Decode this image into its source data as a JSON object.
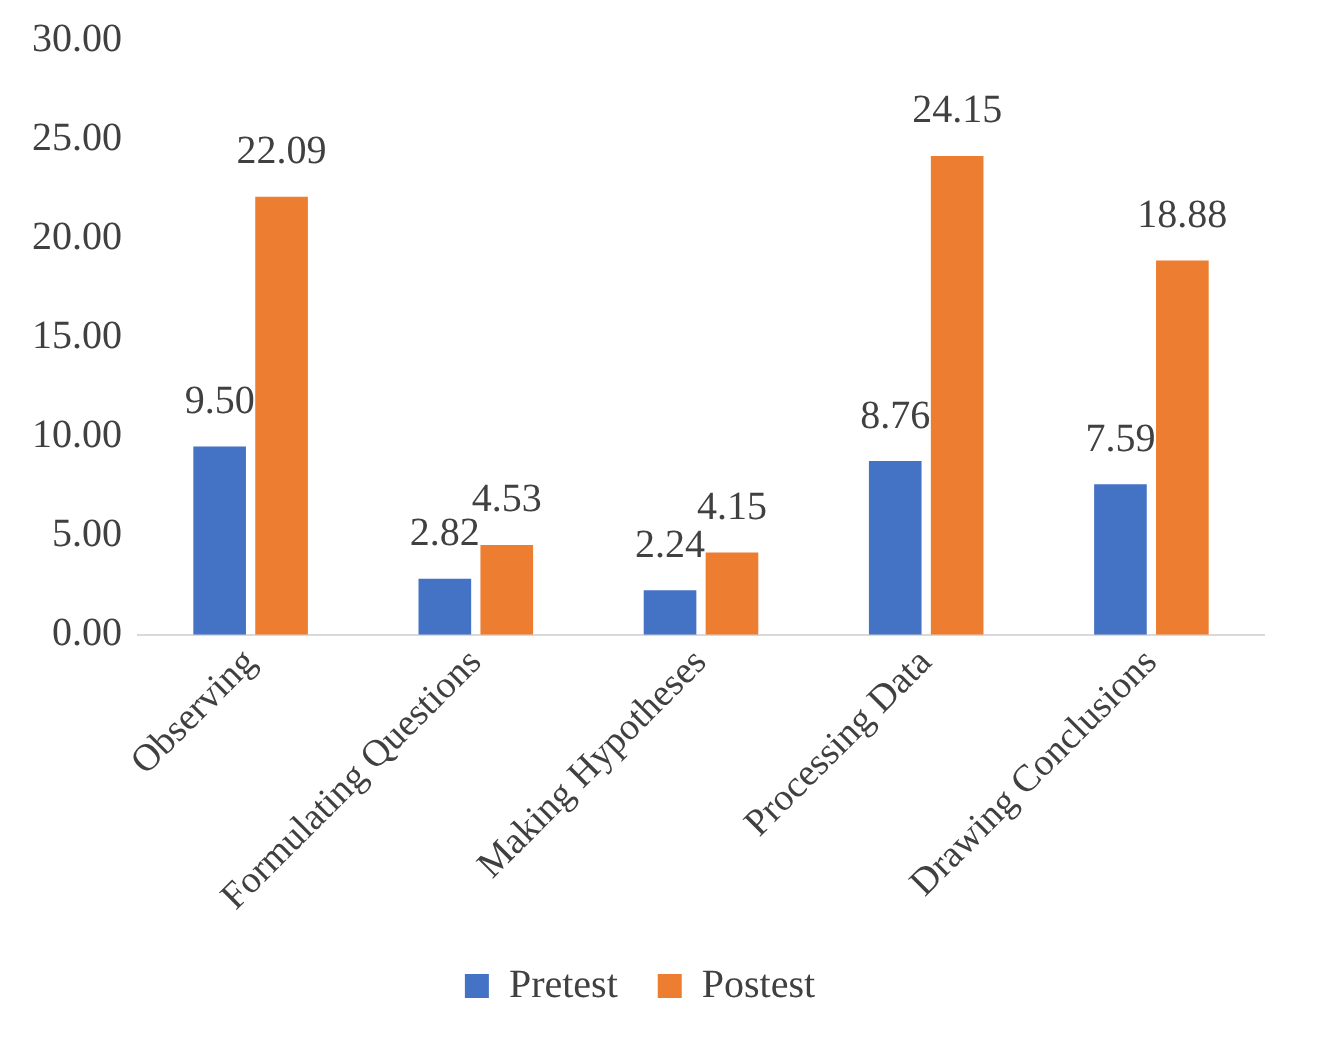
{
  "chart_data": {
    "type": "bar",
    "categories": [
      "Observing",
      "Formulating Questions",
      "Making Hypotheses",
      "Processing Data",
      "Drawing Conclusions"
    ],
    "series": [
      {
        "name": "Pretest",
        "color": "#4472c4",
        "values": [
          9.5,
          2.82,
          2.24,
          8.76,
          7.59
        ],
        "value_labels": [
          "9.50",
          "2.82",
          "2.24",
          "8.76",
          "7.59"
        ]
      },
      {
        "name": "Postest",
        "color": "#ed7d31",
        "values": [
          22.09,
          4.53,
          4.15,
          24.15,
          18.88
        ],
        "value_labels": [
          "22.09",
          "4.53",
          "4.15",
          "24.15",
          "18.88"
        ]
      }
    ],
    "ylim": [
      0,
      30
    ],
    "yticks": [
      {
        "value": 0,
        "label": "0.00"
      },
      {
        "value": 5,
        "label": "5.00"
      },
      {
        "value": 10,
        "label": "10.00"
      },
      {
        "value": 15,
        "label": "15.00"
      },
      {
        "value": 20,
        "label": "20.00"
      },
      {
        "value": 25,
        "label": "25.00"
      },
      {
        "value": 30,
        "label": "30.00"
      }
    ],
    "grid": false,
    "legend": "bottom"
  }
}
